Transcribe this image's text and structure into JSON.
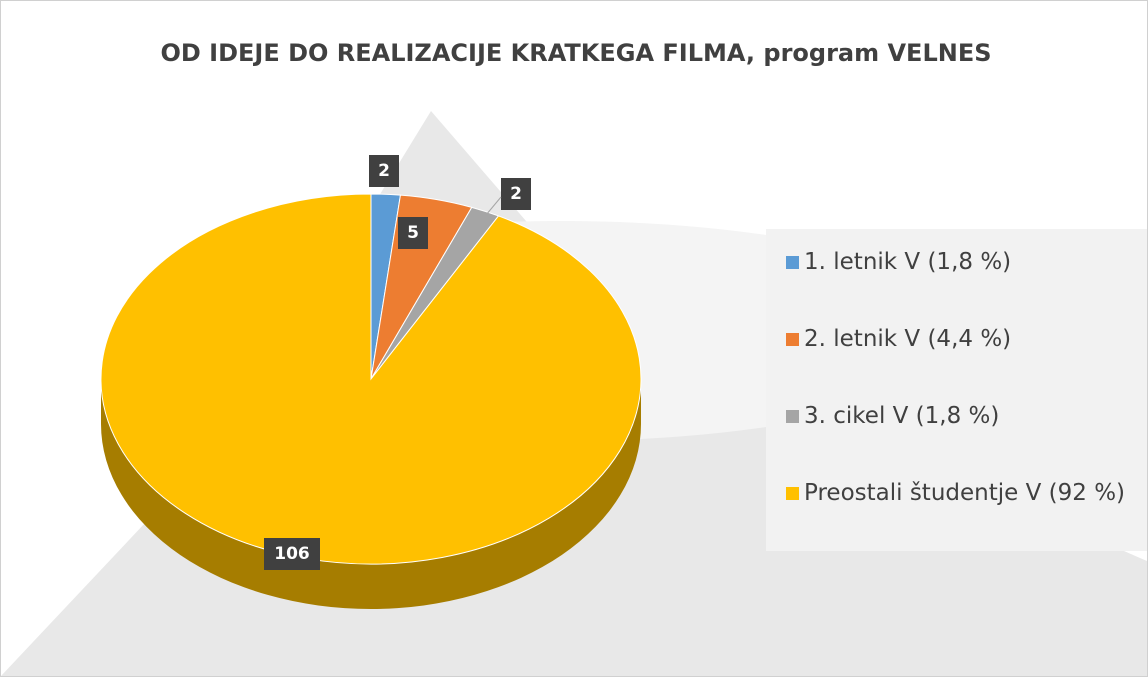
{
  "chart_data": {
    "type": "pie",
    "title": "OD IDEJE DO REALIZACIJE KRATKEGA FILMA, program VELNES",
    "categories": [
      "1. letnik V (1,8 %)",
      "2. letnik V (4,4 %)",
      "3. cikel V (1,8 %)",
      "Preostali študentje V (92 %)"
    ],
    "values": [
      2,
      5,
      2,
      106
    ],
    "colors": [
      "#5b9bd5",
      "#ed7d31",
      "#a5a5a5",
      "#ffc000"
    ],
    "legend": "right"
  }
}
